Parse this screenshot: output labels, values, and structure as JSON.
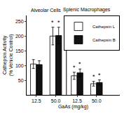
{
  "chart_data": {
    "type": "bar",
    "annotations": [
      "Alveolar Cells",
      "Splenic Macrophages"
    ],
    "xlabel": "GaAs (mg/kg)",
    "ylabel": "Cathepsin Activity\n(% Vehicle Control)",
    "categories": [
      "12.5",
      "50.0",
      "12.5",
      "50.0"
    ],
    "series": [
      {
        "name": "Cathepsin L",
        "color": "#ffffff",
        "values": [
          105,
          200,
          65,
          38
        ],
        "errors": [
          15,
          30,
          12,
          8
        ],
        "annotations": [
          null,
          "*",
          "*",
          "*"
        ]
      },
      {
        "name": "Cathepsin B",
        "color": "#111111",
        "values": [
          103,
          202,
          75,
          42
        ],
        "errors": [
          13,
          28,
          13,
          9
        ],
        "annotations": [
          null,
          "*",
          "*",
          "*"
        ]
      }
    ],
    "ylim": [
      0,
      270
    ],
    "yticks": [
      50,
      100,
      150,
      200,
      250
    ],
    "grid": false,
    "legend": "upper right"
  }
}
